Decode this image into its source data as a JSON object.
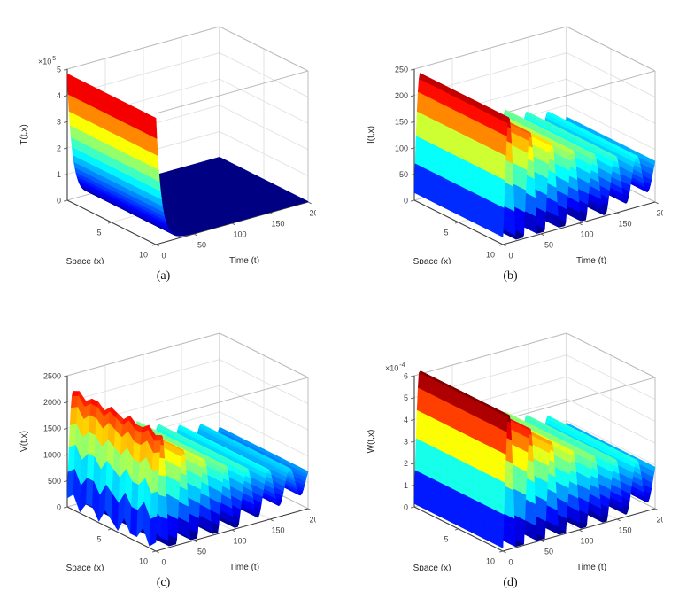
{
  "figure": {
    "background": "#ffffff",
    "captions": [
      "(a)",
      "(b)",
      "(c)",
      "(d)"
    ]
  },
  "chart_data": [
    {
      "type": "surface3d",
      "zlabel": "T(t,x)",
      "xlabel": "Space (x)",
      "ylabel": "Time (t)",
      "x_range": [
        0,
        10
      ],
      "x_ticks": [
        5,
        10
      ],
      "t_range": [
        0,
        200
      ],
      "t_ticks": [
        0,
        50,
        100,
        150,
        200
      ],
      "z_ticks": [
        0,
        1,
        2,
        3,
        4,
        5
      ],
      "z_exponent": "×10^5",
      "z_unit_scale": 100000,
      "colormap": "jet",
      "surface": {
        "kind": "exp_decay",
        "z0": 4.8,
        "tau": 7,
        "z_inf": 0.02,
        "uniform_in_x": true
      },
      "profile": {
        "t": [
          0,
          5,
          10,
          15,
          20,
          30,
          40,
          60,
          100,
          150,
          200
        ],
        "z": [
          4.82,
          2.37,
          1.17,
          0.58,
          0.3,
          0.09,
          0.04,
          0.02,
          0.02,
          0.02,
          0.02
        ]
      }
    },
    {
      "type": "surface3d",
      "zlabel": "I(t,x)",
      "xlabel": "Space (x)",
      "ylabel": "Time (t)",
      "x_range": [
        0,
        10
      ],
      "x_ticks": [
        5,
        10
      ],
      "t_range": [
        0,
        200
      ],
      "t_ticks": [
        0,
        50,
        100,
        150,
        200
      ],
      "z_ticks": [
        0,
        50,
        100,
        150,
        200,
        250
      ],
      "z_exponent": null,
      "z_unit_scale": 1,
      "colormap": "jet",
      "surface": {
        "kind": "damped_osc",
        "eq": 58,
        "amp": 195,
        "tau": 110,
        "period": 28,
        "t_peak": 8,
        "clip_min": 3,
        "uniform_in_x": true
      },
      "profile": {
        "t": [
          0,
          8,
          22,
          36,
          50,
          64,
          78,
          92,
          106,
          120,
          134,
          148,
          162,
          176,
          190,
          200
        ],
        "z": [
          15,
          239,
          3,
          199,
          3,
          167,
          3,
          143,
          3,
          124,
          3,
          109,
          13,
          97,
          23,
          78
        ]
      }
    },
    {
      "type": "surface3d",
      "zlabel": "V(t,x)",
      "xlabel": "Space (x)",
      "ylabel": "Time (t)",
      "x_range": [
        0,
        10
      ],
      "x_ticks": [
        5,
        10
      ],
      "t_range": [
        0,
        200
      ],
      "t_ticks": [
        0,
        50,
        100,
        150,
        200
      ],
      "z_ticks": [
        0,
        500,
        1000,
        1500,
        2000,
        2500
      ],
      "z_exponent": null,
      "z_unit_scale": 1,
      "colormap": "jet",
      "surface": {
        "kind": "damped_osc",
        "eq": 560,
        "amp": 1750,
        "tau": 100,
        "period": 28,
        "t_peak": 8,
        "clip_min": 30,
        "uniform_in_x": false,
        "x_ripple": {
          "amp": 170,
          "cycles": 5,
          "tau": 9
        }
      },
      "profile": {
        "t": [
          0,
          8,
          22,
          36,
          50,
          64,
          78,
          92,
          106,
          120,
          134,
          148,
          162,
          176,
          190,
          200
        ],
        "z": [
          171,
          2175,
          30,
          1781,
          30,
          1483,
          30,
          1257,
          30,
          1087,
          102,
          958,
          214,
          861,
          298,
          709
        ]
      }
    },
    {
      "type": "surface3d",
      "zlabel": "W(t,x)",
      "xlabel": "Space (x)",
      "ylabel": "Time (t)",
      "x_range": [
        0,
        10
      ],
      "x_ticks": [
        5,
        10
      ],
      "t_range": [
        0,
        200
      ],
      "t_ticks": [
        0,
        50,
        100,
        150,
        200
      ],
      "z_ticks": [
        0,
        1,
        2,
        3,
        4,
        5,
        6
      ],
      "z_exponent": "×10^-4",
      "z_unit_scale": 0.0001,
      "colormap": "jet",
      "surface": {
        "kind": "damped_osc",
        "eq": 1.35,
        "amp": 5.4,
        "tau": 110,
        "period": 28,
        "t_peak": 8,
        "clip_min": 0.05,
        "uniform_in_x": true
      },
      "profile": {
        "t": [
          0,
          8,
          22,
          36,
          50,
          64,
          78,
          92,
          106,
          120,
          134,
          148,
          162,
          176,
          190,
          200
        ],
        "z": [
          0.15,
          6.37,
          0.05,
          5.24,
          0.05,
          4.37,
          0.05,
          3.69,
          0.05,
          3.16,
          0.05,
          2.76,
          0.11,
          2.44,
          0.39,
          1.9
        ]
      }
    }
  ]
}
